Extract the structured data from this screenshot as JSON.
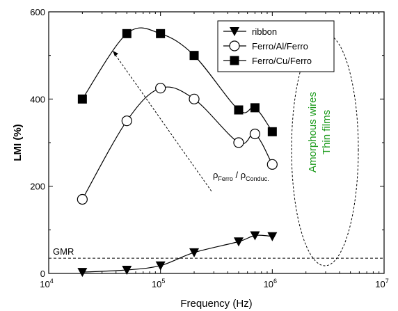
{
  "chart_data": {
    "type": "line",
    "title": "",
    "xlabel": "Frequency (Hz)",
    "ylabel": "LMI (%)",
    "xscale": "log",
    "xlim": [
      10000,
      10000000
    ],
    "ylim": [
      0,
      600
    ],
    "x_ticks": [
      {
        "value": 10000,
        "mantissa": "10",
        "exp": "4"
      },
      {
        "value": 100000,
        "mantissa": "10",
        "exp": "5"
      },
      {
        "value": 1000000,
        "mantissa": "10",
        "exp": "6"
      },
      {
        "value": 10000000,
        "mantissa": "10",
        "exp": "7"
      }
    ],
    "y_ticks": [
      {
        "value": 0,
        "label": "0"
      },
      {
        "value": 200,
        "label": "200"
      },
      {
        "value": 400,
        "label": "400"
      },
      {
        "value": 600,
        "label": "600"
      }
    ],
    "grid": false,
    "legend_position": "top-right",
    "series": [
      {
        "name": "ribbon",
        "marker": "triangle-down-filled",
        "x": [
          20000,
          50000,
          100000,
          200000,
          500000,
          700000,
          1000000
        ],
        "y": [
          3,
          8,
          18,
          48,
          73,
          87,
          85
        ]
      },
      {
        "name": "Ferro/Al/Ferro",
        "marker": "circle-open",
        "x": [
          20000,
          50000,
          100000,
          200000,
          500000,
          700000,
          1000000
        ],
        "y": [
          170,
          350,
          425,
          400,
          300,
          320,
          250
        ]
      },
      {
        "name": "Ferro/Cu/Ferro",
        "marker": "square-filled",
        "x": [
          20000,
          50000,
          100000,
          200000,
          500000,
          700000,
          1000000
        ],
        "y": [
          400,
          550,
          550,
          500,
          375,
          380,
          325
        ]
      }
    ],
    "reference_line": {
      "label": "GMR",
      "y": 35,
      "style": "dashed"
    },
    "annotations": {
      "resistivity_ratio": {
        "rho1": "ρ",
        "sub1": "Ferro",
        "slash": " / ",
        "rho2": "ρ",
        "sub2": "Conduc."
      },
      "amorphous": {
        "line1": "Amorphous wires",
        "line2": "Thin films",
        "color": "#1a9a1a"
      }
    }
  }
}
